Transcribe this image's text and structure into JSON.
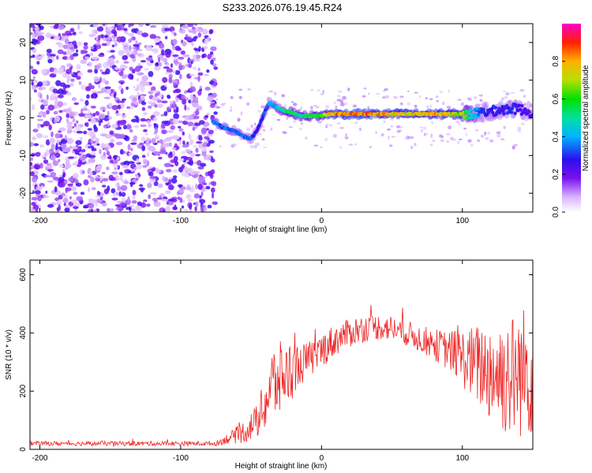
{
  "figure": {
    "title": "S233.2026.076.19.45.R24"
  },
  "chart_data": [
    {
      "type": "heatmap",
      "name": "spectrogram",
      "title": "S233.2026.076.19.45.R24",
      "xlabel": "Height of straight line (km)",
      "ylabel": "Frequency (Hz)",
      "xlim": [
        -207,
        150
      ],
      "ylim": [
        -25,
        25
      ],
      "xticks": [
        -200,
        -100,
        0,
        100
      ],
      "xtick_labels": [
        "-200",
        "-100",
        "0",
        "100"
      ],
      "yticks": [
        -20,
        -10,
        0,
        10,
        20
      ],
      "ytick_labels": [
        "-20",
        "-10",
        "0",
        "10",
        "20"
      ],
      "colorbar": {
        "label": "Normalized spectral amplitude",
        "range": [
          0,
          1
        ],
        "ticks": [
          0.0,
          0.2,
          0.4,
          0.6,
          0.8
        ],
        "tick_labels": [
          "0.0",
          "0.2",
          "0.4",
          "0.6",
          "0.8"
        ]
      },
      "noise_region_x": [
        -207,
        -75
      ],
      "signal_track": {
        "x": [
          -77,
          -70,
          -62,
          -55,
          -50,
          -46,
          -43,
          -40,
          -37,
          -33,
          -28,
          -22,
          -15,
          -8,
          -2,
          5,
          20,
          40,
          60,
          80,
          100,
          106,
          115,
          125,
          135,
          145,
          150
        ],
        "y": [
          -1,
          -2.5,
          -3.5,
          -5,
          -5.5,
          -3.5,
          -1,
          2,
          4,
          3,
          2,
          1.5,
          0.5,
          0.5,
          0.5,
          1,
          1,
          1,
          1,
          1,
          1,
          1,
          1.5,
          2,
          2.5,
          2,
          1.5
        ],
        "amplitude": [
          0.4,
          0.35,
          0.4,
          0.35,
          0.35,
          0.3,
          0.3,
          0.35,
          0.4,
          0.45,
          0.5,
          0.6,
          0.55,
          0.6,
          0.65,
          0.85,
          0.9,
          0.85,
          0.8,
          0.85,
          0.75,
          0.5,
          0.3,
          0.3,
          0.3,
          0.25,
          0.25
        ]
      }
    },
    {
      "type": "line",
      "name": "snr",
      "xlabel": "Height of straight line (km)",
      "ylabel": "SNR (10 * v/v)",
      "xlim": [
        -207,
        150
      ],
      "ylim": [
        0,
        650
      ],
      "xticks": [
        -200,
        -100,
        0,
        100
      ],
      "xtick_labels": [
        "-200",
        "-100",
        "0",
        "100"
      ],
      "yticks": [
        0,
        200,
        400,
        600
      ],
      "ytick_labels": [
        "0",
        "200",
        "400",
        "600"
      ],
      "color": "#ee2222",
      "envelope": {
        "x": [
          -207,
          -75,
          -65,
          -55,
          -45,
          -35,
          -25,
          -15,
          -5,
          5,
          15,
          25,
          35,
          45,
          55,
          65,
          75,
          85,
          95,
          105,
          115,
          125,
          135,
          145,
          150
        ],
        "mean": [
          20,
          20,
          40,
          60,
          100,
          220,
          260,
          290,
          320,
          360,
          390,
          410,
          420,
          420,
          410,
          390,
          370,
          350,
          330,
          300,
          280,
          260,
          250,
          270,
          260
        ],
        "spread": [
          8,
          8,
          20,
          40,
          60,
          140,
          120,
          70,
          60,
          60,
          50,
          50,
          45,
          45,
          45,
          45,
          50,
          60,
          80,
          120,
          160,
          200,
          220,
          230,
          220
        ]
      }
    }
  ]
}
